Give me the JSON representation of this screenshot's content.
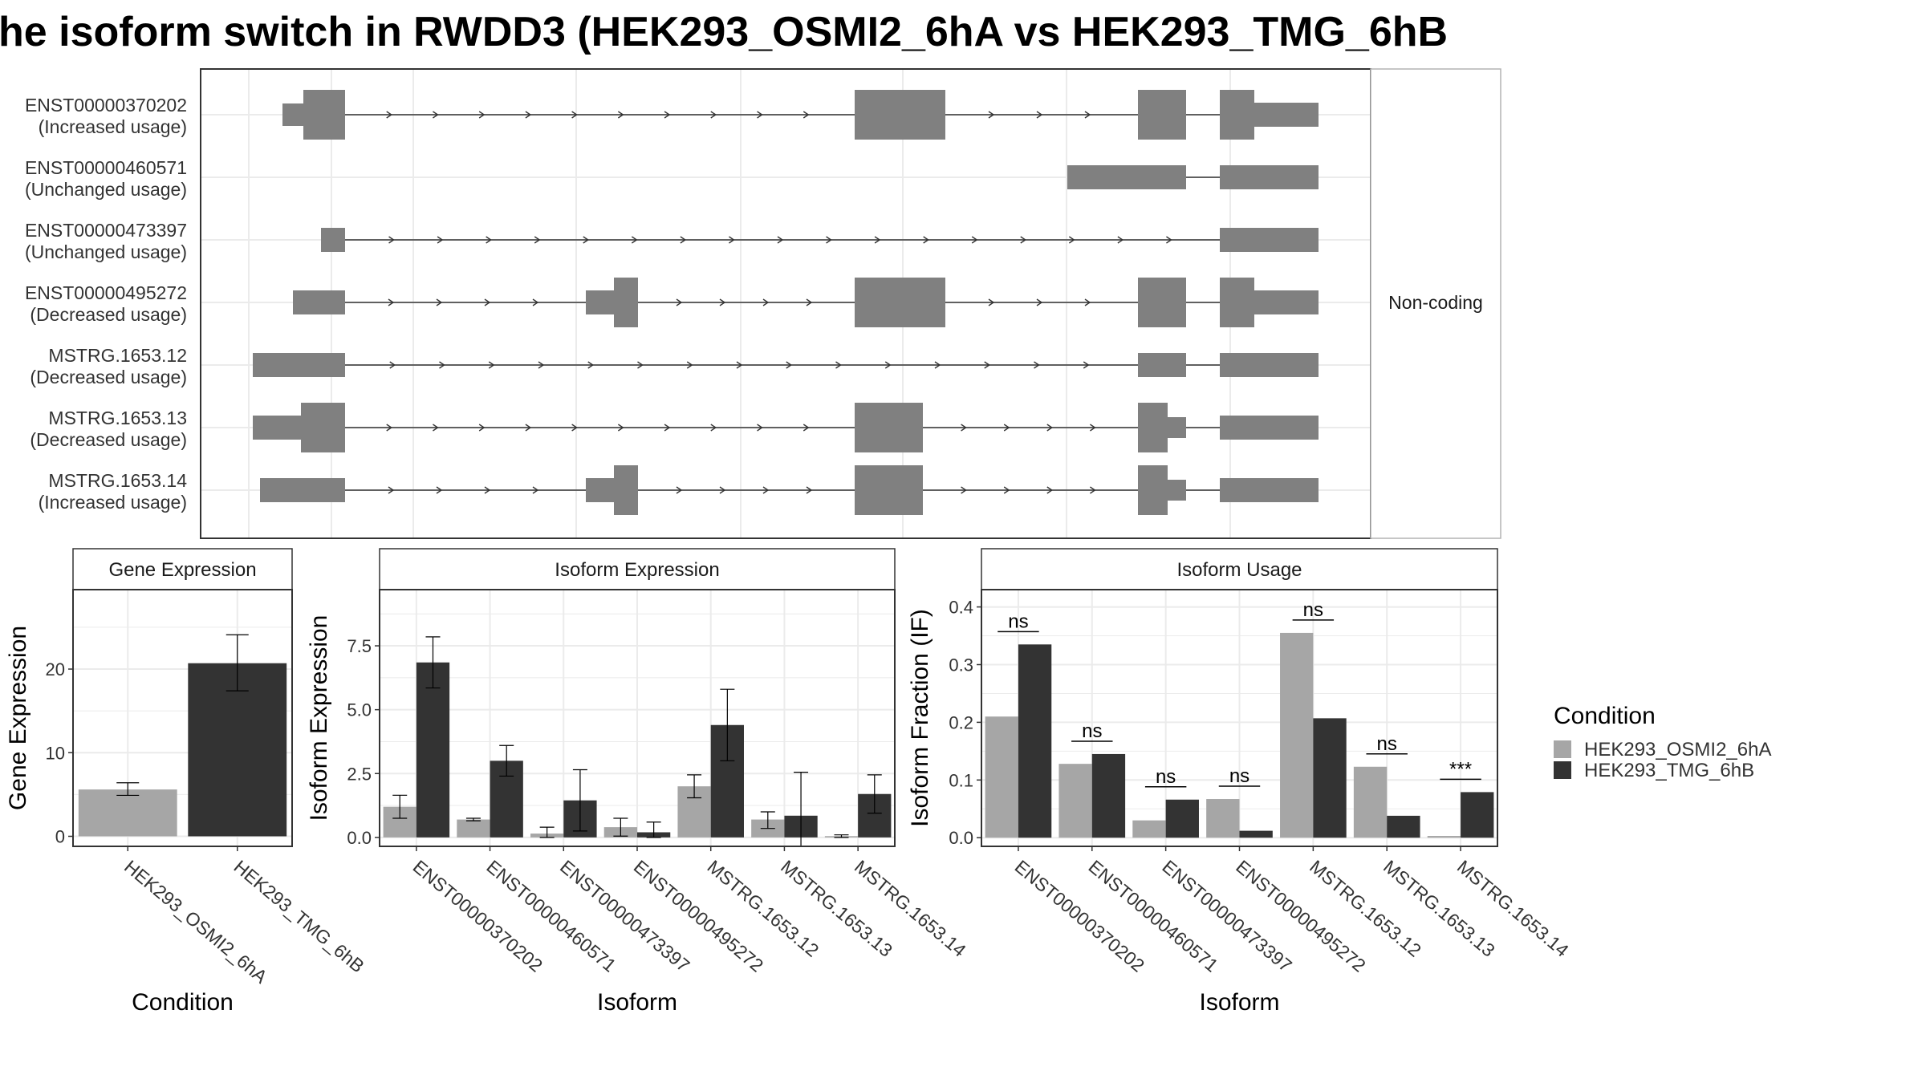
{
  "title": "he isoform switch in RWDD3 (HEK293_OSMI2_6hA vs HEK293_TMG_6hB",
  "colors": {
    "cond1": "#a6a6a6",
    "cond2": "#333333",
    "exon": "#808080",
    "grid": "#ebebeb",
    "line": "#333333"
  },
  "structure": {
    "facet_label": "Non-coding",
    "isoforms": [
      {
        "id": "ENST00000370202",
        "usage": "(Increased usage)"
      },
      {
        "id": "ENST00000460571",
        "usage": "(Unchanged usage)"
      },
      {
        "id": "ENST00000473397",
        "usage": "(Unchanged usage)"
      },
      {
        "id": "ENST00000495272",
        "usage": "(Decreased usage)"
      },
      {
        "id": "MSTRG.1653.12",
        "usage": "(Decreased usage)"
      },
      {
        "id": "MSTRG.1653.13",
        "usage": "(Decreased usage)"
      },
      {
        "id": "MSTRG.1653.14",
        "usage": "(Increased usage)"
      }
    ]
  },
  "gene_panel": {
    "strip": "Gene Expression",
    "ylabel": "Gene Expression",
    "xlabel": "Condition",
    "yticks": [
      "0",
      "10",
      "20"
    ]
  },
  "iso_panel": {
    "strip": "Isoform Expression",
    "ylabel": "Isoform Expression",
    "xlabel": "Isoform",
    "yticks": [
      "0.0",
      "2.5",
      "5.0",
      "7.5"
    ]
  },
  "usage_panel": {
    "strip": "Isoform Usage",
    "ylabel": "Isoform Fraction (IF)",
    "xlabel": "Isoform",
    "yticks": [
      "0.0",
      "0.1",
      "0.2",
      "0.3",
      "0.4"
    ],
    "significance": [
      "ns",
      "ns",
      "ns",
      "ns",
      "ns",
      "ns",
      "***"
    ]
  },
  "legend": {
    "title": "Condition",
    "items": [
      "HEK293_OSMI2_6hA",
      "HEK293_TMG_6hB"
    ]
  },
  "chart_data": [
    {
      "type": "bar",
      "title": "Gene Expression",
      "xlabel": "Condition",
      "ylabel": "Gene Expression",
      "categories": [
        "HEK293_OSMI2_6hA",
        "HEK293_TMG_6hB"
      ],
      "values": [
        5.6,
        20.7
      ],
      "errors": [
        [
          4.9,
          6.4
        ],
        [
          17.4,
          24.1
        ]
      ],
      "ylim": [
        -1.2,
        29.5
      ]
    },
    {
      "type": "bar",
      "title": "Isoform Expression",
      "xlabel": "Isoform",
      "ylabel": "Isoform Expression",
      "categories": [
        "ENST00000370202",
        "ENST00000460571",
        "ENST00000473397",
        "ENST00000495272",
        "MSTRG.1653.12",
        "MSTRG.1653.13",
        "MSTRG.1653.14"
      ],
      "series": [
        {
          "name": "HEK293_OSMI2_6hA",
          "values": [
            1.2,
            0.7,
            0.15,
            0.4,
            2.0,
            0.7,
            0.05
          ],
          "errors": [
            [
              0.75,
              1.65
            ],
            [
              0.65,
              0.75
            ],
            [
              0.0,
              0.4
            ],
            [
              0.05,
              0.75
            ],
            [
              1.55,
              2.45
            ],
            [
              0.35,
              1.0
            ],
            [
              0.0,
              0.1
            ]
          ]
        },
        {
          "name": "HEK293_TMG_6hB",
          "values": [
            6.85,
            3.0,
            1.45,
            0.2,
            4.4,
            0.85,
            1.7
          ],
          "errors": [
            [
              5.85,
              7.85
            ],
            [
              2.4,
              3.6
            ],
            [
              0.25,
              2.65
            ],
            [
              0.0,
              0.6
            ],
            [
              3.0,
              5.8
            ],
            [
              -0.85,
              2.55
            ],
            [
              0.95,
              2.45
            ]
          ]
        }
      ],
      "ylim": [
        -0.35,
        9.7
      ]
    },
    {
      "type": "bar",
      "title": "Isoform Usage",
      "xlabel": "Isoform",
      "ylabel": "Isoform Fraction (IF)",
      "categories": [
        "ENST00000370202",
        "ENST00000460571",
        "ENST00000473397",
        "ENST00000495272",
        "MSTRG.1653.12",
        "MSTRG.1653.13",
        "MSTRG.1653.14"
      ],
      "series": [
        {
          "name": "HEK293_OSMI2_6hA",
          "values": [
            0.21,
            0.128,
            0.03,
            0.067,
            0.355,
            0.123,
            0.003
          ]
        },
        {
          "name": "HEK293_TMG_6hB",
          "values": [
            0.335,
            0.145,
            0.066,
            0.012,
            0.207,
            0.038,
            0.079
          ]
        }
      ],
      "annotations": [
        "ns",
        "ns",
        "ns",
        "ns",
        "ns",
        "ns",
        "***"
      ],
      "ylim": [
        -0.015,
        0.43
      ]
    }
  ]
}
